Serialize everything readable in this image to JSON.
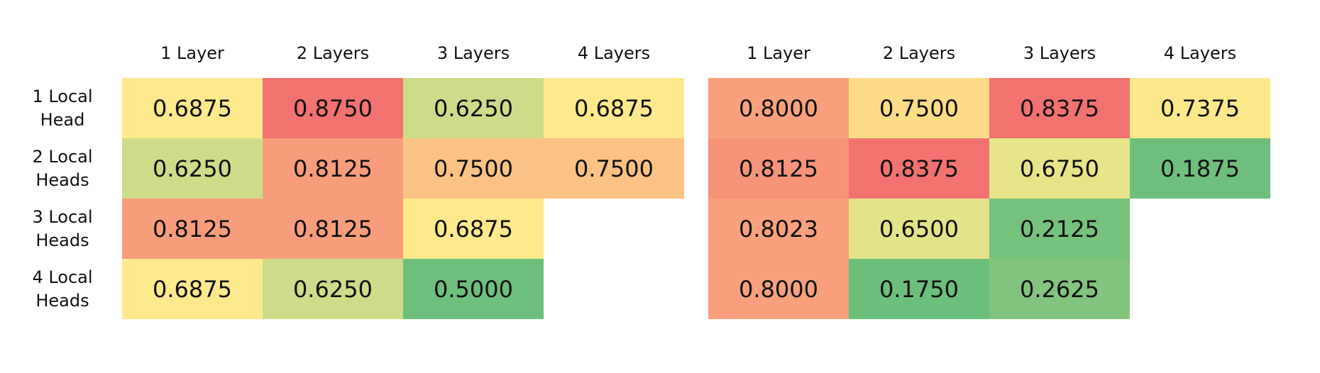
{
  "chart_data": {
    "type": "heatmap",
    "rows": [
      "1 Local\nHead",
      "2 Local\nHeads",
      "3 Local\nHeads",
      "4 Local\nHeads"
    ],
    "heatmaps": [
      {
        "columns": [
          "1 Layer",
          "2 Layers",
          "3 Layers",
          "4 Layers"
        ],
        "values": [
          [
            "0.6875",
            "0.8750",
            "0.6250",
            "0.6875"
          ],
          [
            "0.6250",
            "0.8125",
            "0.7500",
            "0.7500"
          ],
          [
            "0.8125",
            "0.8125",
            "0.6875",
            null
          ],
          [
            "0.6875",
            "0.6250",
            "0.5000",
            null
          ]
        ],
        "colors": [
          [
            "#FEE98C",
            "#F27270",
            "#CEDC8A",
            "#FEE98C"
          ],
          [
            "#CEDC8A",
            "#F89D7C",
            "#FBC285",
            "#FBC285"
          ],
          [
            "#F89D7C",
            "#F89D7C",
            "#FEE98C",
            null
          ],
          [
            "#FEE98C",
            "#CEDC8A",
            "#6EBF7B",
            null
          ]
        ]
      },
      {
        "columns": [
          "1 Layer",
          "2 Layers",
          "3 Layers",
          "4 Layers"
        ],
        "values": [
          [
            "0.8000",
            "0.7500",
            "0.8375",
            "0.7375"
          ],
          [
            "0.8125",
            "0.8375",
            "0.6750",
            "0.1875"
          ],
          [
            "0.8023",
            "0.6500",
            "0.2125",
            null
          ],
          [
            "0.8000",
            "0.1750",
            "0.2625",
            null
          ]
        ],
        "colors": [
          [
            "#F8A17C",
            "#FDDC87",
            "#F27270",
            "#FCE88B"
          ],
          [
            "#F79379",
            "#F27270",
            "#E8E48A",
            "#6EBF7B"
          ],
          [
            "#F8A17C",
            "#E3E38A",
            "#76C17C",
            null
          ],
          [
            "#F8A17C",
            "#6BBF7B",
            "#82C47D",
            null
          ]
        ]
      }
    ]
  }
}
